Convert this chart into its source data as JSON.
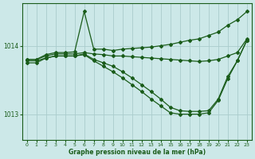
{
  "background_color": "#cce8e8",
  "grid_color": "#aacccc",
  "line_color": "#1a5c1a",
  "xlabel": "Graphe pression niveau de la mer (hPa)",
  "ylim": [
    1012.62,
    1014.62
  ],
  "xlim": [
    -0.5,
    23.5
  ],
  "yticks": [
    1013,
    1014
  ],
  "xticks": [
    0,
    1,
    2,
    3,
    4,
    5,
    6,
    7,
    8,
    9,
    10,
    11,
    12,
    13,
    14,
    15,
    16,
    17,
    18,
    19,
    20,
    21,
    22,
    23
  ],
  "series": [
    {
      "x": [
        0,
        1,
        2,
        3,
        4,
        5,
        6,
        7,
        8,
        9,
        10,
        11,
        12,
        13,
        14,
        15,
        16,
        17,
        18,
        19,
        20,
        21,
        22,
        23
      ],
      "y": [
        1013.8,
        1013.8,
        1013.87,
        1013.9,
        1013.9,
        1013.91,
        1014.5,
        1013.95,
        1013.95,
        1013.93,
        1013.95,
        1013.96,
        1013.97,
        1013.98,
        1014.0,
        1014.02,
        1014.05,
        1014.08,
        1014.1,
        1014.15,
        1014.2,
        1014.3,
        1014.38,
        1014.5
      ]
    },
    {
      "x": [
        0,
        1,
        2,
        3,
        4,
        5,
        6,
        7,
        8,
        9,
        10,
        11,
        12,
        13,
        14,
        15,
        16,
        17,
        18,
        19,
        20,
        21,
        22,
        23
      ],
      "y": [
        1013.8,
        1013.8,
        1013.85,
        1013.88,
        1013.88,
        1013.88,
        1013.9,
        1013.88,
        1013.87,
        1013.85,
        1013.85,
        1013.84,
        1013.83,
        1013.82,
        1013.81,
        1013.8,
        1013.79,
        1013.78,
        1013.77,
        1013.78,
        1013.8,
        1013.85,
        1013.9,
        1014.1
      ]
    },
    {
      "x": [
        0,
        1,
        2,
        3,
        4,
        5,
        6,
        7,
        8,
        9,
        10,
        11,
        12,
        13,
        14,
        15,
        16,
        17,
        18,
        19,
        20,
        21,
        22,
        23
      ],
      "y": [
        1013.78,
        1013.78,
        1013.82,
        1013.85,
        1013.85,
        1013.85,
        1013.88,
        1013.8,
        1013.75,
        1013.7,
        1013.62,
        1013.53,
        1013.43,
        1013.33,
        1013.22,
        1013.1,
        1013.05,
        1013.04,
        1013.04,
        1013.05,
        1013.22,
        1013.55,
        1013.78,
        1014.08
      ]
    },
    {
      "x": [
        0,
        1,
        2,
        3,
        4,
        5,
        6,
        7,
        8,
        9,
        10,
        11,
        12,
        13,
        14,
        15,
        16,
        17,
        18,
        19,
        20,
        21,
        22,
        23
      ],
      "y": [
        1013.75,
        1013.75,
        1013.82,
        1013.85,
        1013.85,
        1013.85,
        1013.87,
        1013.78,
        1013.7,
        1013.62,
        1013.53,
        1013.43,
        1013.33,
        1013.22,
        1013.12,
        1013.02,
        1013.0,
        1013.0,
        1013.0,
        1013.02,
        1013.2,
        1013.52,
        1013.78,
        1014.08
      ]
    }
  ]
}
